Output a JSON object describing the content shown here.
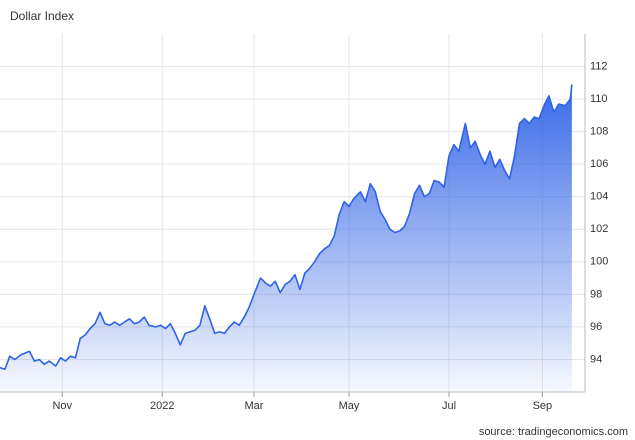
{
  "chart_data": {
    "type": "area",
    "title": "Dollar Index",
    "source": "source: tradingeconomics.com",
    "series": [
      {
        "name": "Dollar Index",
        "color": "#2f62e6",
        "x": [
          0,
          3,
          6,
          9,
          13,
          18,
          21,
          24,
          27,
          30,
          34,
          37,
          40,
          43,
          46,
          49,
          52,
          55,
          58,
          61,
          64,
          67,
          70,
          73,
          76,
          79,
          82,
          85,
          88,
          91,
          95,
          98,
          101,
          104,
          107,
          110,
          113,
          116,
          119,
          122,
          125,
          128,
          131,
          134,
          137,
          140,
          143,
          146,
          149,
          152,
          155,
          159,
          162,
          165,
          168,
          171,
          174,
          177,
          180,
          183,
          186,
          189,
          192,
          195,
          198,
          201,
          204,
          207,
          210,
          213,
          216,
          220,
          223,
          226,
          229,
          232,
          235,
          238,
          241,
          244,
          247,
          250,
          253,
          256,
          259,
          262,
          265,
          268,
          271,
          274,
          277,
          280,
          284,
          287,
          290,
          293,
          296,
          299,
          302,
          305,
          308,
          311,
          314,
          317,
          320,
          323,
          326,
          329,
          332,
          335,
          338,
          341,
          345,
          348,
          349
        ],
        "values": [
          93.5,
          93.4,
          94.2,
          94.0,
          94.3,
          94.5,
          93.9,
          94.0,
          93.7,
          93.9,
          93.6,
          94.1,
          93.9,
          94.2,
          94.1,
          95.3,
          95.5,
          95.9,
          96.2,
          96.9,
          96.2,
          96.1,
          96.3,
          96.1,
          96.3,
          96.5,
          96.2,
          96.3,
          96.6,
          96.1,
          96.0,
          96.1,
          95.9,
          96.2,
          95.6,
          94.9,
          95.6,
          95.7,
          95.8,
          96.1,
          97.3,
          96.5,
          95.6,
          95.7,
          95.6,
          96.0,
          96.3,
          96.1,
          96.6,
          97.2,
          98.0,
          99.0,
          98.7,
          98.5,
          98.8,
          98.1,
          98.6,
          98.8,
          99.2,
          98.3,
          99.3,
          99.6,
          100.0,
          100.5,
          100.8,
          101.0,
          101.6,
          102.9,
          103.7,
          103.4,
          103.9,
          104.3,
          103.7,
          104.8,
          104.3,
          103.1,
          102.6,
          102.0,
          101.8,
          101.9,
          102.2,
          103.0,
          104.2,
          104.7,
          104.0,
          104.2,
          105.0,
          104.9,
          104.6,
          106.5,
          107.2,
          106.8,
          108.5,
          107.0,
          107.4,
          106.6,
          106.0,
          106.8,
          105.8,
          106.3,
          105.6,
          105.1,
          106.5,
          108.5,
          108.8,
          108.5,
          108.9,
          108.8,
          109.6,
          110.2,
          109.2,
          109.7,
          109.6,
          110.0,
          110.9
        ]
      }
    ],
    "xlim": [
      0,
      357
    ],
    "xticks": [
      {
        "value": 38,
        "label": "Nov"
      },
      {
        "value": 99,
        "label": "2022"
      },
      {
        "value": 155,
        "label": "Mar"
      },
      {
        "value": 213,
        "label": "May"
      },
      {
        "value": 274,
        "label": "Jul"
      },
      {
        "value": 331,
        "label": "Sep"
      }
    ],
    "ylim": [
      92,
      114
    ],
    "yticks": [
      94,
      96,
      98,
      100,
      102,
      104,
      106,
      108,
      110,
      112
    ],
    "grid": true
  }
}
